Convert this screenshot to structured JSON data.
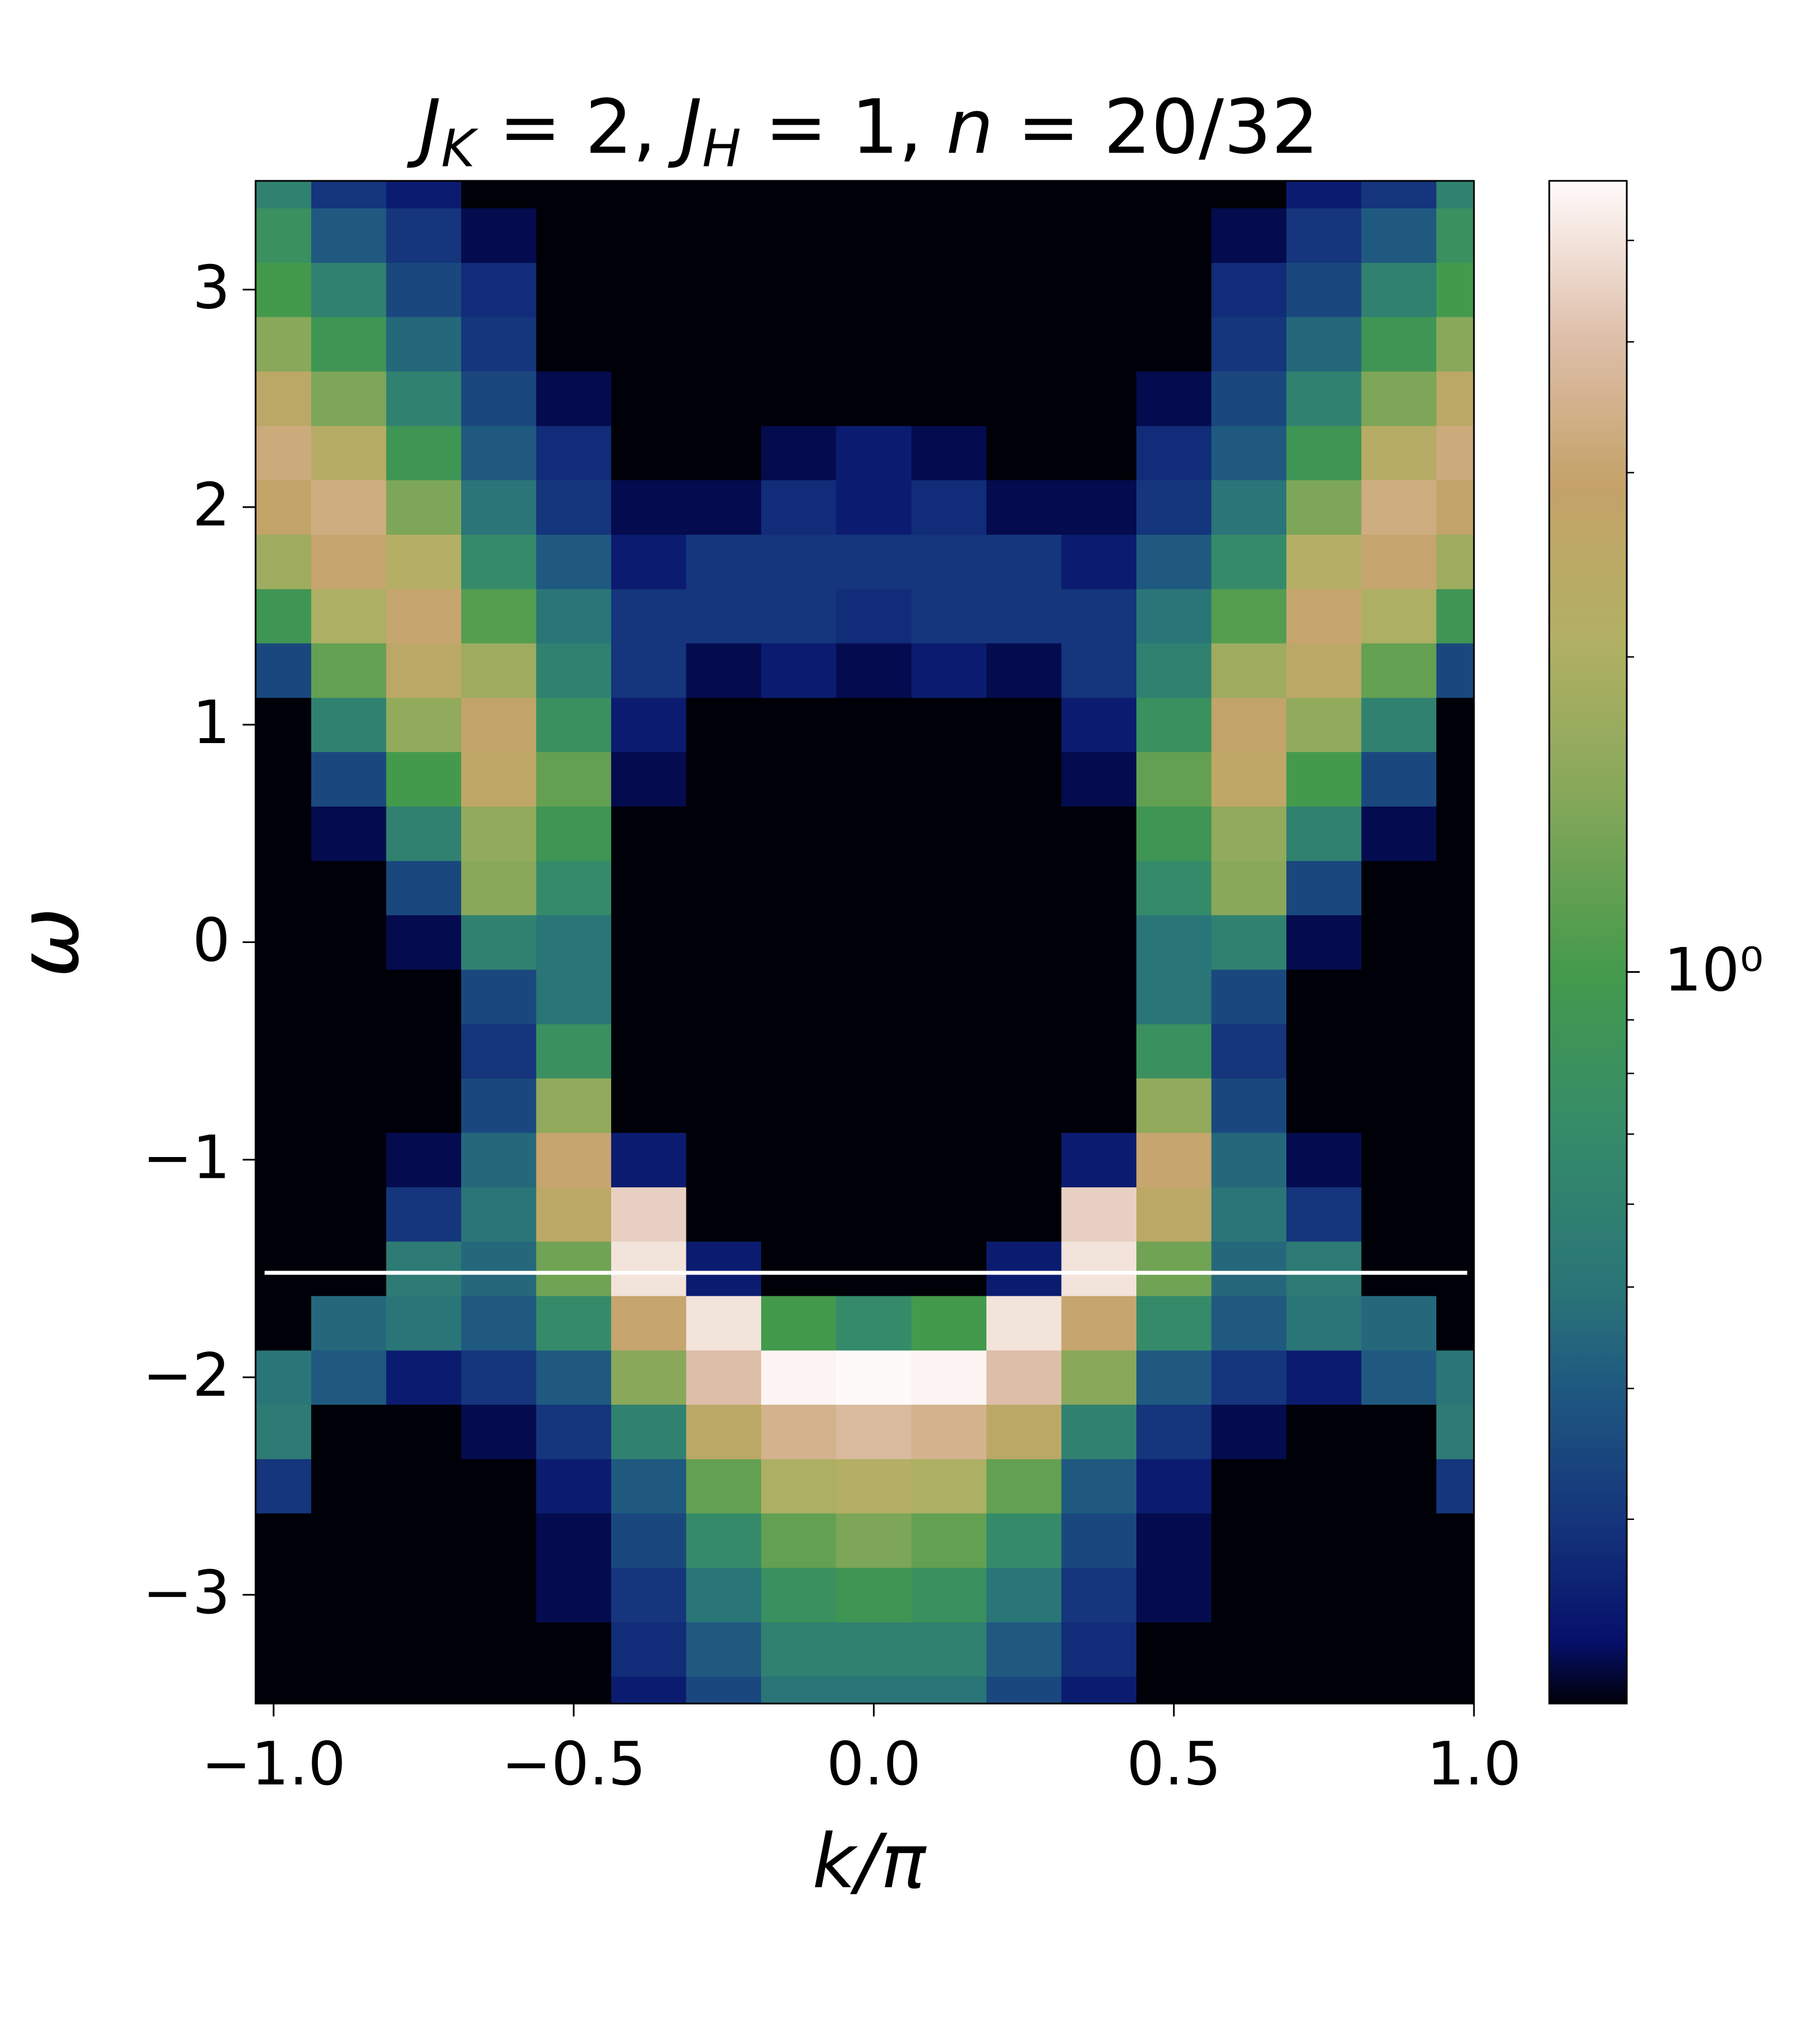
{
  "chart_data": {
    "type": "heatmap",
    "title": [
      "J",
      "K",
      " = 2, ",
      "J",
      "H",
      " = 1, ",
      "n",
      " = 20/32"
    ],
    "xlabel": "k/π",
    "ylabel": "ω",
    "xlim": [
      -1.03,
      1.0
    ],
    "ylim": [
      -3.5,
      3.5
    ],
    "xticks": [
      {
        "value": -1,
        "label": "−1.0"
      },
      {
        "value": -0.5,
        "label": "−0.5"
      },
      {
        "value": 0,
        "label": "0.0"
      },
      0.5,
      {
        "value": 1,
        "label": "1.0"
      }
    ],
    "yticks": [
      {
        "value": -3,
        "label": "−3"
      },
      {
        "value": -2,
        "label": "−2"
      },
      {
        "value": -1,
        "label": "−1"
      },
      0,
      1,
      2,
      3
    ],
    "colormap": "gist_earth",
    "colorbar": {
      "scale": "log",
      "lim": [
        0.2,
        5.7
      ],
      "ticks": [
        {
          "value": 1,
          "label": "10⁰"
        }
      ],
      "minor_ticks": [
        0.3,
        0.4,
        0.5,
        0.6,
        0.7,
        0.8,
        0.9,
        2,
        3,
        4,
        5
      ]
    },
    "hline": {
      "y": -1.52,
      "color": "#ffffff"
    },
    "x": [
      -1,
      -0.875,
      -0.75,
      -0.625,
      -0.5,
      -0.375,
      -0.25,
      -0.125,
      0,
      0.125,
      0.25,
      0.375,
      0.5,
      0.625,
      0.75,
      0.875,
      1
    ],
    "y": [
      -3.5,
      -3.25,
      -3,
      -2.75,
      -2.5,
      -2.25,
      -2,
      -1.75,
      -1.5,
      -1.25,
      -1,
      -0.75,
      -0.5,
      -0.25,
      0,
      0.25,
      0.5,
      0.75,
      1,
      1.25,
      1.5,
      1.75,
      2,
      2.25,
      2.5,
      2.75,
      3,
      3.25,
      3.5
    ],
    "values": [
      [
        0.1,
        0.1,
        0.1,
        0.1,
        0.1,
        0.25,
        0.35,
        0.5,
        0.5,
        0.5,
        0.35,
        0.25,
        0.1,
        0.1,
        0.1,
        0.1,
        0.1
      ],
      [
        0.1,
        0.1,
        0.1,
        0.1,
        0.1,
        0.28,
        0.4,
        0.6,
        0.6,
        0.6,
        0.4,
        0.28,
        0.1,
        0.1,
        0.1,
        0.1,
        0.1
      ],
      [
        0.1,
        0.1,
        0.1,
        0.1,
        0.22,
        0.3,
        0.5,
        0.8,
        0.9,
        0.8,
        0.5,
        0.3,
        0.22,
        0.1,
        0.1,
        0.1,
        0.1
      ],
      [
        0.1,
        0.1,
        0.1,
        0.1,
        0.22,
        0.35,
        0.7,
        1.2,
        1.4,
        1.2,
        0.7,
        0.35,
        0.22,
        0.1,
        0.1,
        0.1,
        0.1
      ],
      [
        0.3,
        0.1,
        0.1,
        0.1,
        0.25,
        0.4,
        1.2,
        2.0,
        2.2,
        2.0,
        1.2,
        0.4,
        0.25,
        0.1,
        0.1,
        0.1,
        0.3
      ],
      [
        0.55,
        0.1,
        0.1,
        0.22,
        0.3,
        0.6,
        2.5,
        3.5,
        3.8,
        3.5,
        2.5,
        0.6,
        0.3,
        0.22,
        0.1,
        0.1,
        0.55
      ],
      [
        0.5,
        0.4,
        0.25,
        0.3,
        0.4,
        1.5,
        4.0,
        5.5,
        5.7,
        5.5,
        4.0,
        1.5,
        0.4,
        0.3,
        0.25,
        0.4,
        0.5
      ],
      [
        0.1,
        0.45,
        0.5,
        0.4,
        0.7,
        3.0,
        5.0,
        1.0,
        0.7,
        1.0,
        5.0,
        3.0,
        0.7,
        0.4,
        0.5,
        0.45,
        0.1
      ],
      [
        0.1,
        0.1,
        0.55,
        0.45,
        1.3,
        5.0,
        0.25,
        0.1,
        0.1,
        0.1,
        0.25,
        5.0,
        1.3,
        0.45,
        0.55,
        0.1,
        0.1
      ],
      [
        0.1,
        0.1,
        0.3,
        0.5,
        2.5,
        4.5,
        0.1,
        0.1,
        0.1,
        0.1,
        0.1,
        4.5,
        2.5,
        0.5,
        0.3,
        0.1,
        0.1
      ],
      [
        0.1,
        0.1,
        0.22,
        0.45,
        3.0,
        0.25,
        0.1,
        0.1,
        0.1,
        0.1,
        0.1,
        0.25,
        3.0,
        0.45,
        0.22,
        0.1,
        0.1
      ],
      [
        0.1,
        0.1,
        0.1,
        0.35,
        1.6,
        0.1,
        0.1,
        0.1,
        0.1,
        0.1,
        0.1,
        0.1,
        1.6,
        0.35,
        0.1,
        0.1,
        0.1
      ],
      [
        0.1,
        0.1,
        0.1,
        0.3,
        0.8,
        0.1,
        0.1,
        0.1,
        0.1,
        0.1,
        0.1,
        0.1,
        0.8,
        0.3,
        0.1,
        0.1,
        0.1
      ],
      [
        0.1,
        0.1,
        0.1,
        0.35,
        0.5,
        0.1,
        0.1,
        0.1,
        0.1,
        0.1,
        0.1,
        0.1,
        0.5,
        0.35,
        0.1,
        0.1,
        0.1
      ],
      [
        0.1,
        0.1,
        0.22,
        0.6,
        0.5,
        0.1,
        0.1,
        0.1,
        0.1,
        0.1,
        0.1,
        0.1,
        0.5,
        0.6,
        0.22,
        0.1,
        0.1
      ],
      [
        0.1,
        0.1,
        0.35,
        1.5,
        0.7,
        0.1,
        0.1,
        0.1,
        0.1,
        0.1,
        0.1,
        0.1,
        0.7,
        1.5,
        0.35,
        0.1,
        0.1
      ],
      [
        0.1,
        0.22,
        0.6,
        1.6,
        0.9,
        0.1,
        0.1,
        0.1,
        0.1,
        0.1,
        0.1,
        0.1,
        0.9,
        1.6,
        0.6,
        0.22,
        0.1
      ],
      [
        0.1,
        0.35,
        1.0,
        2.6,
        1.2,
        0.22,
        0.1,
        0.1,
        0.1,
        0.1,
        0.1,
        0.22,
        1.2,
        2.6,
        1.0,
        0.35,
        0.1
      ],
      [
        0.1,
        0.6,
        1.6,
        2.8,
        0.8,
        0.25,
        0.1,
        0.1,
        0.1,
        0.1,
        0.1,
        0.25,
        0.8,
        2.8,
        1.6,
        0.6,
        0.1
      ],
      [
        0.35,
        1.2,
        2.5,
        1.8,
        0.6,
        0.3,
        0.22,
        0.25,
        0.22,
        0.25,
        0.22,
        0.3,
        0.6,
        1.8,
        2.5,
        1.2,
        0.35
      ],
      [
        0.9,
        2.0,
        3.0,
        1.1,
        0.5,
        0.3,
        0.3,
        0.3,
        0.28,
        0.3,
        0.3,
        0.3,
        0.5,
        1.1,
        3.0,
        2.0,
        0.9
      ],
      [
        1.8,
        3.0,
        2.2,
        0.7,
        0.4,
        0.25,
        0.3,
        0.3,
        0.3,
        0.3,
        0.3,
        0.25,
        0.4,
        0.7,
        2.2,
        3.0,
        1.8
      ],
      [
        2.8,
        3.3,
        1.4,
        0.5,
        0.3,
        0.22,
        0.22,
        0.28,
        0.25,
        0.28,
        0.22,
        0.22,
        0.3,
        0.5,
        1.4,
        3.3,
        2.8
      ],
      [
        3.2,
        2.3,
        0.9,
        0.4,
        0.28,
        0.1,
        0.1,
        0.22,
        0.25,
        0.22,
        0.1,
        0.1,
        0.28,
        0.4,
        0.9,
        2.3,
        3.2
      ],
      [
        2.5,
        1.4,
        0.6,
        0.35,
        0.22,
        0.1,
        0.1,
        0.1,
        0.1,
        0.1,
        0.1,
        0.1,
        0.22,
        0.35,
        0.6,
        1.4,
        2.5
      ],
      [
        1.5,
        0.9,
        0.45,
        0.3,
        0.1,
        0.1,
        0.1,
        0.1,
        0.1,
        0.1,
        0.1,
        0.1,
        0.1,
        0.3,
        0.45,
        0.9,
        1.5
      ],
      [
        1.0,
        0.6,
        0.35,
        0.28,
        0.1,
        0.1,
        0.1,
        0.1,
        0.1,
        0.1,
        0.1,
        0.1,
        0.1,
        0.28,
        0.35,
        0.6,
        1.0
      ],
      [
        0.8,
        0.4,
        0.3,
        0.22,
        0.1,
        0.1,
        0.1,
        0.1,
        0.1,
        0.1,
        0.1,
        0.1,
        0.1,
        0.22,
        0.3,
        0.4,
        0.8
      ],
      [
        0.6,
        0.3,
        0.25,
        0.1,
        0.1,
        0.1,
        0.1,
        0.1,
        0.1,
        0.1,
        0.1,
        0.1,
        0.1,
        0.1,
        0.25,
        0.3,
        0.6
      ]
    ]
  }
}
